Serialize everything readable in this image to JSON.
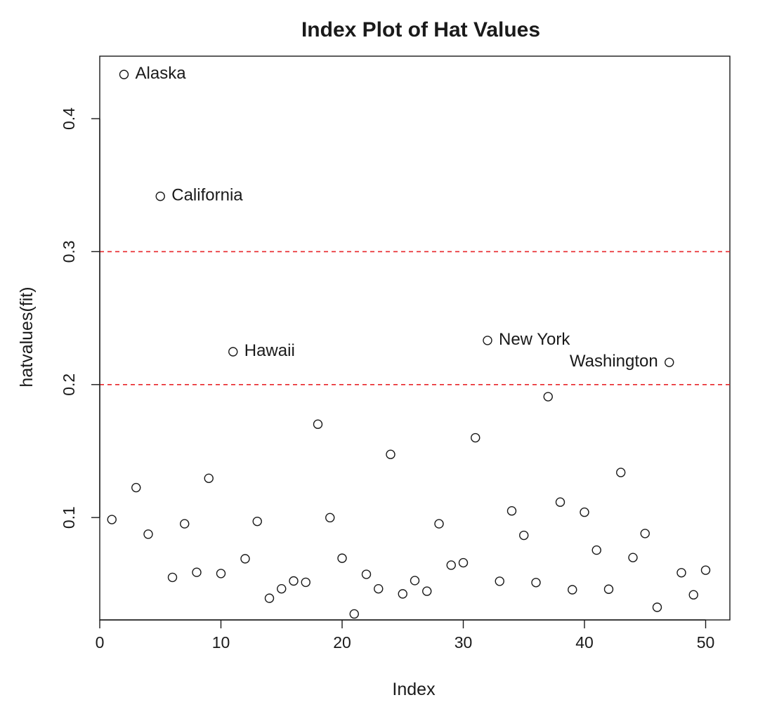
{
  "chart_data": {
    "type": "scatter",
    "title": "Index Plot of Hat Values",
    "xlabel": "Index",
    "ylabel": "hatvalues(fit)",
    "xlim": [
      0,
      52
    ],
    "ylim": [
      0.023,
      0.447
    ],
    "x_ticks": [
      0,
      10,
      20,
      30,
      40,
      50
    ],
    "y_ticks": [
      0.1,
      0.2,
      0.3,
      0.4
    ],
    "x_tick_labels": [
      "0",
      "10",
      "20",
      "30",
      "40",
      "50"
    ],
    "y_tick_labels": [
      "0.1",
      "0.2",
      "0.3",
      "0.4"
    ],
    "grid": false,
    "reference_lines": [
      {
        "y": 0.2,
        "color": "#e8262a",
        "style": "dashed"
      },
      {
        "y": 0.3,
        "color": "#e8262a",
        "style": "dashed"
      }
    ],
    "x": [
      1,
      2,
      3,
      4,
      5,
      6,
      7,
      8,
      9,
      10,
      11,
      12,
      13,
      14,
      15,
      16,
      17,
      18,
      19,
      20,
      21,
      22,
      23,
      24,
      25,
      26,
      27,
      28,
      29,
      30,
      31,
      32,
      33,
      34,
      35,
      36,
      37,
      38,
      39,
      40,
      41,
      42,
      43,
      44,
      45,
      46,
      47,
      48,
      49,
      50
    ],
    "values": [
      0.0985,
      0.4332,
      0.1225,
      0.0875,
      0.3416,
      0.055,
      0.0953,
      0.0588,
      0.1295,
      0.0579,
      0.2247,
      0.069,
      0.0971,
      0.0393,
      0.0464,
      0.0523,
      0.0513,
      0.1702,
      0.0999,
      0.0694,
      0.0275,
      0.0573,
      0.0464,
      0.1475,
      0.0426,
      0.0526,
      0.0446,
      0.0953,
      0.0642,
      0.066,
      0.16,
      0.2332,
      0.0521,
      0.105,
      0.0866,
      0.0511,
      0.1909,
      0.1116,
      0.0457,
      0.104,
      0.0755,
      0.0461,
      0.1339,
      0.0699,
      0.088,
      0.0325,
      0.2167,
      0.0585,
      0.0419,
      0.0604
    ],
    "labeled_points": [
      {
        "index": 2,
        "label": "Alaska",
        "side": "right"
      },
      {
        "index": 5,
        "label": "California",
        "side": "right"
      },
      {
        "index": 11,
        "label": "Hawaii",
        "side": "right"
      },
      {
        "index": 32,
        "label": "New York",
        "side": "right"
      },
      {
        "index": 47,
        "label": "Washington",
        "side": "left"
      }
    ]
  },
  "colors": {
    "reference_line": "#e8262a",
    "ink": "#1a1a1a"
  }
}
